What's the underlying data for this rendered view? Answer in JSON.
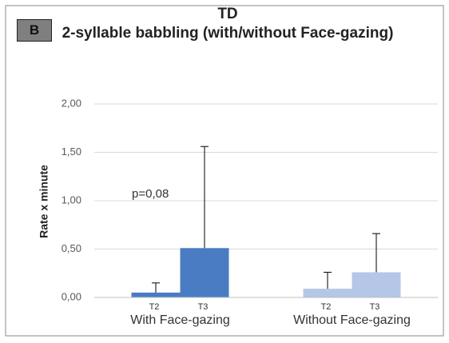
{
  "chart_data": {
    "type": "bar",
    "panel": "B",
    "title": "TD",
    "subtitle": "2-syllable babbling (with/without Face-gazing)",
    "y_label": "Rate x minute",
    "annotation": "p=0,08",
    "subcategories": [
      "T2",
      "T3"
    ],
    "series": [
      {
        "name": "With Face-gazing",
        "color": "#4a7cc4",
        "values": [
          0.05,
          0.51
        ],
        "errors": [
          0.1,
          1.05
        ]
      },
      {
        "name": "Without Face-gazing",
        "color": "#b4c7e7",
        "values": [
          0.09,
          0.26
        ],
        "errors": [
          0.17,
          0.4
        ]
      }
    ],
    "ylim": [
      0,
      2
    ],
    "yticks": [
      {
        "value": 0,
        "label": "0,00"
      },
      {
        "value": 0.5,
        "label": "0,50"
      },
      {
        "value": 1,
        "label": "1,00"
      },
      {
        "value": 1.5,
        "label": "1,50"
      },
      {
        "value": 2,
        "label": "2,00"
      }
    ],
    "grid": true
  }
}
